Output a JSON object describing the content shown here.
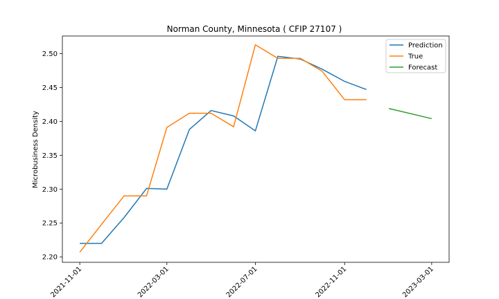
{
  "chart_data": {
    "type": "line",
    "title": "Norman County, Minnesota ( CFIP 27107 )",
    "xlabel": "",
    "ylabel": "Microbusiness Density",
    "xlim": [
      "2021-10-08",
      "2023-03-25"
    ],
    "ylim": [
      2.192,
      2.526
    ],
    "x_ticks": [
      "2021-11-01",
      "2022-03-01",
      "2022-07-01",
      "2022-11-01",
      "2023-03-01"
    ],
    "y_ticks": [
      "2.20",
      "2.25",
      "2.30",
      "2.35",
      "2.40",
      "2.45",
      "2.50"
    ],
    "grid": false,
    "legend_position": "top-right",
    "series": [
      {
        "name": "Prediction",
        "color": "#1f77b4",
        "points": [
          {
            "x": "2021-11-01",
            "y": 2.22
          },
          {
            "x": "2021-12-01",
            "y": 2.22
          },
          {
            "x": "2022-01-01",
            "y": 2.258
          },
          {
            "x": "2022-02-01",
            "y": 2.301
          },
          {
            "x": "2022-03-01",
            "y": 2.3
          },
          {
            "x": "2022-04-01",
            "y": 2.388
          },
          {
            "x": "2022-05-01",
            "y": 2.416
          },
          {
            "x": "2022-06-01",
            "y": 2.408
          },
          {
            "x": "2022-07-01",
            "y": 2.386
          },
          {
            "x": "2022-08-01",
            "y": 2.496
          },
          {
            "x": "2022-09-01",
            "y": 2.492
          },
          {
            "x": "2022-10-01",
            "y": 2.477
          },
          {
            "x": "2022-11-01",
            "y": 2.459
          },
          {
            "x": "2022-12-01",
            "y": 2.447
          }
        ]
      },
      {
        "name": "True",
        "color": "#ff7f0e",
        "points": [
          {
            "x": "2021-11-01",
            "y": 2.207
          },
          {
            "x": "2021-12-01",
            "y": 2.248
          },
          {
            "x": "2022-01-01",
            "y": 2.29
          },
          {
            "x": "2022-02-01",
            "y": 2.29
          },
          {
            "x": "2022-03-01",
            "y": 2.391
          },
          {
            "x": "2022-04-01",
            "y": 2.412
          },
          {
            "x": "2022-05-01",
            "y": 2.412
          },
          {
            "x": "2022-06-01",
            "y": 2.392
          },
          {
            "x": "2022-07-01",
            "y": 2.513
          },
          {
            "x": "2022-08-01",
            "y": 2.493
          },
          {
            "x": "2022-09-01",
            "y": 2.493
          },
          {
            "x": "2022-10-01",
            "y": 2.474
          },
          {
            "x": "2022-11-01",
            "y": 2.432
          },
          {
            "x": "2022-12-01",
            "y": 2.432
          }
        ]
      },
      {
        "name": "Forecast",
        "color": "#2ca02c",
        "points": [
          {
            "x": "2023-01-01",
            "y": 2.419
          },
          {
            "x": "2023-03-01",
            "y": 2.404
          }
        ]
      }
    ]
  }
}
